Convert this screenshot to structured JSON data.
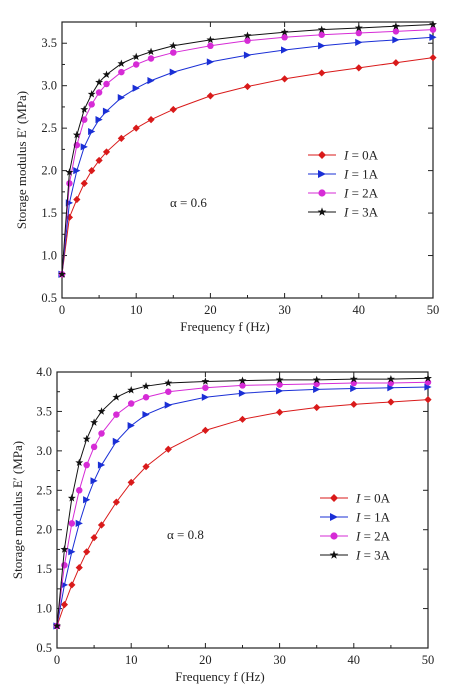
{
  "chart_data": [
    {
      "type": "line",
      "title": "",
      "xlabel": "Frequency f  (Hz)",
      "ylabel": "Storage modulus E′ (MPa)",
      "xlim": [
        0,
        50
      ],
      "ylim": [
        0.5,
        3.75
      ],
      "xticks": [
        "0",
        "10",
        "20",
        "30",
        "40",
        "50"
      ],
      "yticks": [
        "0.5",
        "1.0",
        "1.5",
        "2.0",
        "2.5",
        "3.0",
        "3.5"
      ],
      "annotation": "α = 0.6",
      "legend_position": "right",
      "series": [
        {
          "name": "I = 0A",
          "label_var": "I",
          "label_val": " = 0A",
          "color": "#d91a1a",
          "marker": "diamond",
          "x": [
            0,
            1,
            2,
            3,
            4,
            5,
            6,
            8,
            10,
            12,
            15,
            20,
            25,
            30,
            35,
            40,
            45,
            50
          ],
          "y": [
            0.78,
            1.45,
            1.66,
            1.85,
            2.0,
            2.12,
            2.22,
            2.38,
            2.5,
            2.6,
            2.72,
            2.88,
            2.99,
            3.08,
            3.15,
            3.21,
            3.27,
            3.33
          ]
        },
        {
          "name": "I = 1A",
          "label_var": "I",
          "label_val": " = 1A",
          "color": "#1a2fd6",
          "marker": "triangle-right",
          "x": [
            0,
            1,
            2,
            3,
            4,
            5,
            6,
            8,
            10,
            12,
            15,
            20,
            25,
            30,
            35,
            40,
            45,
            50
          ],
          "y": [
            0.78,
            1.62,
            2.0,
            2.28,
            2.46,
            2.6,
            2.7,
            2.86,
            2.97,
            3.06,
            3.16,
            3.28,
            3.36,
            3.42,
            3.47,
            3.51,
            3.54,
            3.57
          ]
        },
        {
          "name": "I = 2A",
          "label_var": "I",
          "label_val": " = 2A",
          "color": "#d62bd6",
          "marker": "circle",
          "x": [
            0,
            1,
            2,
            3,
            4,
            5,
            6,
            8,
            10,
            12,
            15,
            20,
            25,
            30,
            35,
            40,
            45,
            50
          ],
          "y": [
            0.78,
            1.85,
            2.3,
            2.6,
            2.78,
            2.92,
            3.02,
            3.16,
            3.25,
            3.32,
            3.39,
            3.47,
            3.53,
            3.57,
            3.6,
            3.62,
            3.64,
            3.66
          ]
        },
        {
          "name": "I = 3A",
          "label_var": "I",
          "label_val": " = 3A",
          "color": "#111111",
          "marker": "star",
          "x": [
            0,
            1,
            2,
            3,
            4,
            5,
            6,
            8,
            10,
            12,
            15,
            20,
            25,
            30,
            35,
            40,
            45,
            50
          ],
          "y": [
            0.78,
            1.98,
            2.42,
            2.72,
            2.9,
            3.04,
            3.13,
            3.26,
            3.34,
            3.4,
            3.47,
            3.54,
            3.59,
            3.63,
            3.66,
            3.68,
            3.7,
            3.72
          ]
        }
      ]
    },
    {
      "type": "line",
      "title": "",
      "xlabel": "Frequency f  (Hz)",
      "ylabel": "Storage modulus E′ (MPa)",
      "xlim": [
        0,
        50
      ],
      "ylim": [
        0.5,
        4.0
      ],
      "xticks": [
        "0",
        "10",
        "20",
        "30",
        "40",
        "50"
      ],
      "yticks": [
        "0.5",
        "1.0",
        "1.5",
        "2.0",
        "2.5",
        "3.0",
        "3.5",
        "4.0"
      ],
      "annotation": "α = 0.8",
      "legend_position": "right",
      "series": [
        {
          "name": "I = 0A",
          "label_var": "I",
          "label_val": " = 0A",
          "color": "#d91a1a",
          "marker": "diamond",
          "x": [
            0,
            1,
            2,
            3,
            4,
            5,
            6,
            8,
            10,
            12,
            15,
            20,
            25,
            30,
            35,
            40,
            45,
            50
          ],
          "y": [
            0.78,
            1.05,
            1.3,
            1.52,
            1.72,
            1.9,
            2.06,
            2.35,
            2.6,
            2.8,
            3.02,
            3.26,
            3.4,
            3.49,
            3.55,
            3.59,
            3.62,
            3.65
          ]
        },
        {
          "name": "I = 1A",
          "label_var": "I",
          "label_val": " = 1A",
          "color": "#1a2fd6",
          "marker": "triangle-right",
          "x": [
            0,
            1,
            2,
            3,
            4,
            5,
            6,
            8,
            10,
            12,
            15,
            20,
            25,
            30,
            35,
            40,
            45,
            50
          ],
          "y": [
            0.78,
            1.3,
            1.72,
            2.08,
            2.38,
            2.62,
            2.82,
            3.12,
            3.32,
            3.46,
            3.58,
            3.68,
            3.73,
            3.76,
            3.78,
            3.79,
            3.8,
            3.81
          ]
        },
        {
          "name": "I = 2A",
          "label_var": "I",
          "label_val": " = 2A",
          "color": "#d62bd6",
          "marker": "circle",
          "x": [
            0,
            1,
            2,
            3,
            4,
            5,
            6,
            8,
            10,
            12,
            15,
            20,
            25,
            30,
            35,
            40,
            45,
            50
          ],
          "y": [
            0.78,
            1.55,
            2.08,
            2.5,
            2.82,
            3.05,
            3.22,
            3.46,
            3.6,
            3.68,
            3.75,
            3.8,
            3.83,
            3.84,
            3.85,
            3.86,
            3.86,
            3.87
          ]
        },
        {
          "name": "I = 3A",
          "label_var": "I",
          "label_val": " = 3A",
          "color": "#111111",
          "marker": "star",
          "x": [
            0,
            1,
            2,
            3,
            4,
            5,
            6,
            8,
            10,
            12,
            15,
            20,
            25,
            30,
            35,
            40,
            45,
            50
          ],
          "y": [
            0.78,
            1.75,
            2.4,
            2.85,
            3.15,
            3.36,
            3.5,
            3.68,
            3.77,
            3.82,
            3.86,
            3.88,
            3.89,
            3.9,
            3.9,
            3.91,
            3.91,
            3.92
          ]
        }
      ]
    }
  ]
}
